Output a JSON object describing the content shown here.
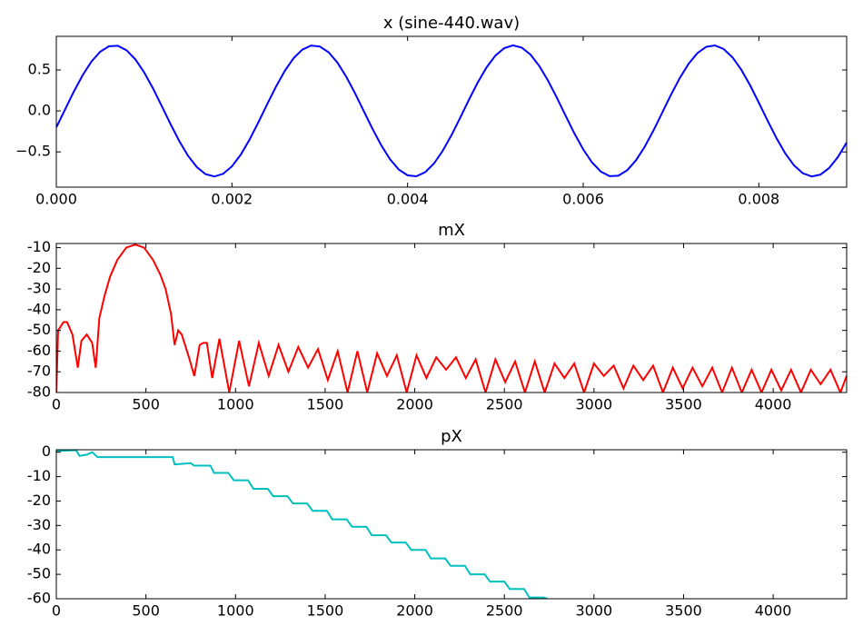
{
  "chart_data": [
    {
      "type": "line",
      "title": "x (sine-440.wav)",
      "color": "#0000ff",
      "x": [
        0,
        0.0001,
        0.0002,
        0.0003,
        0.0004,
        0.0005,
        0.0006,
        0.0007,
        0.0008,
        0.0009,
        0.001,
        0.0011,
        0.0012,
        0.0013,
        0.0014,
        0.0015,
        0.0016,
        0.0017,
        0.0018,
        0.0019,
        0.002,
        0.0021,
        0.0022,
        0.0023,
        0.0024,
        0.0025,
        0.0026,
        0.0027,
        0.0028,
        0.0029,
        0.003,
        0.0031,
        0.0032,
        0.0033,
        0.0034,
        0.0035,
        0.0036,
        0.0037,
        0.0038,
        0.0039,
        0.004,
        0.0041,
        0.0042,
        0.0043,
        0.0044,
        0.0045,
        0.0046,
        0.0047,
        0.0048,
        0.0049,
        0.005,
        0.0051,
        0.0052,
        0.0053,
        0.0054,
        0.0055,
        0.0056,
        0.0057,
        0.0058,
        0.0059,
        0.006,
        0.0061,
        0.0062,
        0.0063,
        0.0064,
        0.0065,
        0.0066,
        0.0067,
        0.0068,
        0.0069,
        0.007,
        0.0071,
        0.0072,
        0.0073,
        0.0074,
        0.0075,
        0.0076,
        0.0077,
        0.0078,
        0.0079,
        0.008,
        0.0081,
        0.0082,
        0.0083,
        0.0084,
        0.0085,
        0.0086,
        0.0087,
        0.0088,
        0.0089,
        0.009
      ],
      "values": [
        -0.2,
        0.019,
        0.237,
        0.436,
        0.603,
        0.723,
        0.789,
        0.795,
        0.74,
        0.63,
        0.471,
        0.277,
        0.061,
        -0.159,
        -0.367,
        -0.547,
        -0.685,
        -0.772,
        -0.8,
        -0.767,
        -0.676,
        -0.534,
        -0.351,
        -0.141,
        0.079,
        0.293,
        0.485,
        0.641,
        0.747,
        0.797,
        0.786,
        0.716,
        0.591,
        0.421,
        0.219,
        0.001,
        -0.217,
        -0.419,
        -0.589,
        -0.715,
        -0.786,
        -0.797,
        -0.748,
        -0.642,
        -0.487,
        -0.296,
        -0.081,
        0.139,
        0.349,
        0.532,
        0.675,
        0.766,
        0.8,
        0.773,
        0.687,
        0.548,
        0.369,
        0.161,
        -0.059,
        -0.275,
        -0.469,
        -0.628,
        -0.74,
        -0.795,
        -0.79,
        -0.724,
        -0.604,
        -0.438,
        -0.239,
        -0.021,
        0.198,
        0.402,
        0.575,
        0.705,
        0.782,
        0.799,
        0.755,
        0.654,
        0.503,
        0.314,
        0.101,
        -0.119,
        -0.33,
        -0.517,
        -0.664,
        -0.76,
        -0.799,
        -0.778,
        -0.697,
        -0.563,
        -0.386
      ],
      "xlim": [
        0,
        0.009
      ],
      "ylim": [
        -0.93,
        0.91
      ],
      "xticks": [
        {
          "value": 0,
          "label": "0.000"
        },
        0.002,
        0.004,
        0.006,
        0.008
      ],
      "yticks": [
        {
          "value": -0.5,
          "label": "−0.5"
        },
        {
          "value": 0,
          "label": "0.0"
        },
        0.5
      ]
    },
    {
      "type": "line",
      "title": "mX",
      "color": "#ff0000",
      "x": [
        0,
        10,
        40,
        60,
        90,
        120,
        140,
        170,
        200,
        220,
        240,
        270,
        300,
        340,
        390,
        440,
        490,
        540,
        580,
        610,
        640,
        660,
        680,
        700,
        740,
        770,
        800,
        820,
        840,
        870,
        910,
        965,
        1020,
        1075,
        1130,
        1185,
        1240,
        1295,
        1350,
        1405,
        1460,
        1515,
        1570,
        1625,
        1680,
        1735,
        1790,
        1845,
        1900,
        1955,
        2010,
        2065,
        2120,
        2175,
        2230,
        2285,
        2340,
        2395,
        2450,
        2505,
        2560,
        2615,
        2670,
        2725,
        2780,
        2835,
        2890,
        2945,
        3000,
        3055,
        3110,
        3165,
        3220,
        3275,
        3330,
        3385,
        3440,
        3495,
        3550,
        3605,
        3660,
        3715,
        3770,
        3825,
        3880,
        3935,
        3990,
        4045,
        4100,
        4155,
        4210,
        4265,
        4320,
        4375,
        4410
      ],
      "values": [
        -80,
        -50,
        -46,
        -46,
        -52,
        -68,
        -55,
        -52,
        -56,
        -68,
        -44,
        -33,
        -24,
        -16,
        -10,
        -8.5,
        -10,
        -16,
        -23,
        -30,
        -42,
        -57,
        -50,
        -52,
        -63,
        -72,
        -57,
        -56,
        -56,
        -73,
        -54,
        -80,
        -55,
        -77,
        -56,
        -72,
        -57,
        -70,
        -58,
        -68,
        -59,
        -74,
        -60,
        -80,
        -60,
        -80,
        -61,
        -72,
        -62,
        -80,
        -62,
        -73,
        -63,
        -69,
        -63,
        -73,
        -64,
        -80,
        -64,
        -75,
        -65,
        -80,
        -65,
        -80,
        -66,
        -73,
        -66,
        -80,
        -66,
        -72,
        -67,
        -78,
        -67,
        -74,
        -67,
        -80,
        -68,
        -78,
        -68,
        -77,
        -68,
        -80,
        -68,
        -80,
        -69,
        -80,
        -69,
        -79,
        -69,
        -80,
        -69,
        -76,
        -69,
        -80,
        -72
      ],
      "xlim": [
        0,
        4410
      ],
      "ylim": [
        -80,
        -8
      ],
      "xticks": [
        0,
        500,
        1000,
        1500,
        2000,
        2500,
        3000,
        3500,
        4000
      ],
      "yticks": [
        -80,
        -70,
        -60,
        -50,
        -40,
        -30,
        -20,
        -10
      ]
    },
    {
      "type": "line",
      "title": "pX",
      "color": "#00bfbf",
      "x": [
        0,
        110,
        130,
        170,
        200,
        230,
        650,
        660,
        750,
        770,
        860,
        880,
        960,
        990,
        1070,
        1100,
        1180,
        1210,
        1290,
        1320,
        1400,
        1430,
        1510,
        1540,
        1620,
        1650,
        1730,
        1760,
        1840,
        1870,
        1950,
        1980,
        2060,
        2090,
        2170,
        2200,
        2280,
        2310,
        2390,
        2420,
        2500,
        2530,
        2610,
        2640,
        2720,
        2740
      ],
      "values": [
        0.5,
        0.8,
        -1.5,
        -1,
        0,
        -2,
        -2,
        -5,
        -4.5,
        -5.5,
        -5.5,
        -8.5,
        -8.5,
        -11.5,
        -11.5,
        -15,
        -15,
        -18,
        -18,
        -21,
        -21,
        -24,
        -24,
        -27.5,
        -27.5,
        -30.5,
        -30.5,
        -34,
        -34,
        -37,
        -37,
        -40,
        -40,
        -43.5,
        -43.5,
        -46.5,
        -46.5,
        -50,
        -50,
        -53,
        -53,
        -56,
        -56,
        -59.5,
        -59.5,
        -60
      ],
      "xlim": [
        0,
        4410
      ],
      "ylim": [
        -60,
        1
      ],
      "xticks": [
        0,
        500,
        1000,
        1500,
        2000,
        2500,
        3000,
        3500,
        4000
      ],
      "yticks": [
        -60,
        -50,
        -40,
        -30,
        -20,
        -10,
        0
      ]
    }
  ]
}
